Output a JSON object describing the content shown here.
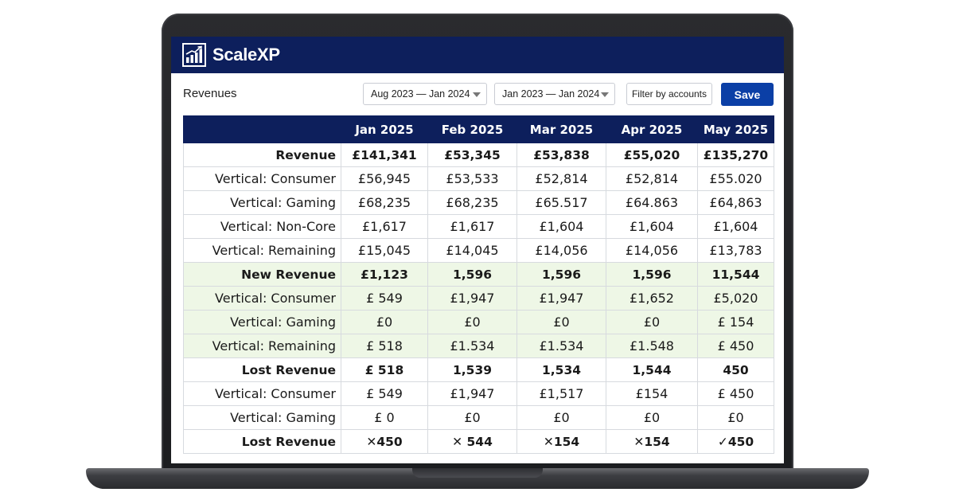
{
  "app": {
    "brand": "ScaleXP"
  },
  "toolbar": {
    "page_title": "Revenues",
    "range_1": "Aug 2023 — Jan 2024",
    "range_2": "Jan 2023 — Jan 2024",
    "filter_label": "Filter by accounts",
    "save_label": "Save"
  },
  "table": {
    "columns": [
      "Jan 2025",
      "Feb 2025",
      "Mar 2025",
      "Apr 2025",
      "May 2025"
    ],
    "rows": [
      {
        "label": "Revenue",
        "bold": true,
        "green": false,
        "values": [
          "£141,341",
          "£53,345",
          "£53,838",
          "£55,020",
          "£135,270"
        ]
      },
      {
        "label": "Vertical: Consumer",
        "bold": false,
        "green": false,
        "values": [
          "£56,945",
          "£53,533",
          "£52,814",
          "£52,814",
          "£55.020"
        ]
      },
      {
        "label": "Vertical: Gaming",
        "bold": false,
        "green": false,
        "values": [
          "£68,235",
          "£68,235",
          "£65.517",
          "£64.863",
          "£64,863"
        ]
      },
      {
        "label": "Vertical: Non-Core",
        "bold": false,
        "green": false,
        "values": [
          "£1,617",
          "£1,617",
          "£1,604",
          "£1,604",
          "£1,604"
        ]
      },
      {
        "label": "Vertical: Remaining",
        "bold": false,
        "green": false,
        "values": [
          "£15,045",
          "£14,045",
          "£14,056",
          "£14,056",
          "£13,783"
        ]
      },
      {
        "label": "New Revenue",
        "bold": true,
        "green": true,
        "values": [
          "£1,123",
          "1,596",
          "1,596",
          "1,596",
          "11,544"
        ]
      },
      {
        "label": "Vertical: Consumer",
        "bold": false,
        "green": true,
        "values": [
          "£ 549",
          "£1,947",
          "£1,947",
          "£1,652",
          "£5,020"
        ]
      },
      {
        "label": "Vertical: Gaming",
        "bold": false,
        "green": true,
        "values": [
          "£0",
          "£0",
          "£0",
          "£0",
          "£ 154"
        ]
      },
      {
        "label": "Vertical: Remaining",
        "bold": false,
        "green": true,
        "values": [
          "£ 518",
          "£1.534",
          "£1.534",
          "£1.548",
          "£ 450"
        ]
      },
      {
        "label": "Lost Revenue",
        "bold": true,
        "green": false,
        "values": [
          "£ 518",
          "1,539",
          "1,534",
          "1,544",
          "450"
        ]
      },
      {
        "label": "Vertical: Consumer",
        "bold": false,
        "green": false,
        "values": [
          "£ 549",
          "£1,947",
          "£1,517",
          "£154",
          "£ 450"
        ]
      },
      {
        "label": "Vertical: Gaming",
        "bold": false,
        "green": false,
        "values": [
          "£ 0",
          "£0",
          "£0",
          "£0",
          "£0"
        ]
      },
      {
        "label": "Lost Revenue",
        "bold": true,
        "green": false,
        "values": [
          "✕450",
          "✕ 544",
          "✕154",
          "✕154",
          "✓450"
        ]
      }
    ]
  }
}
